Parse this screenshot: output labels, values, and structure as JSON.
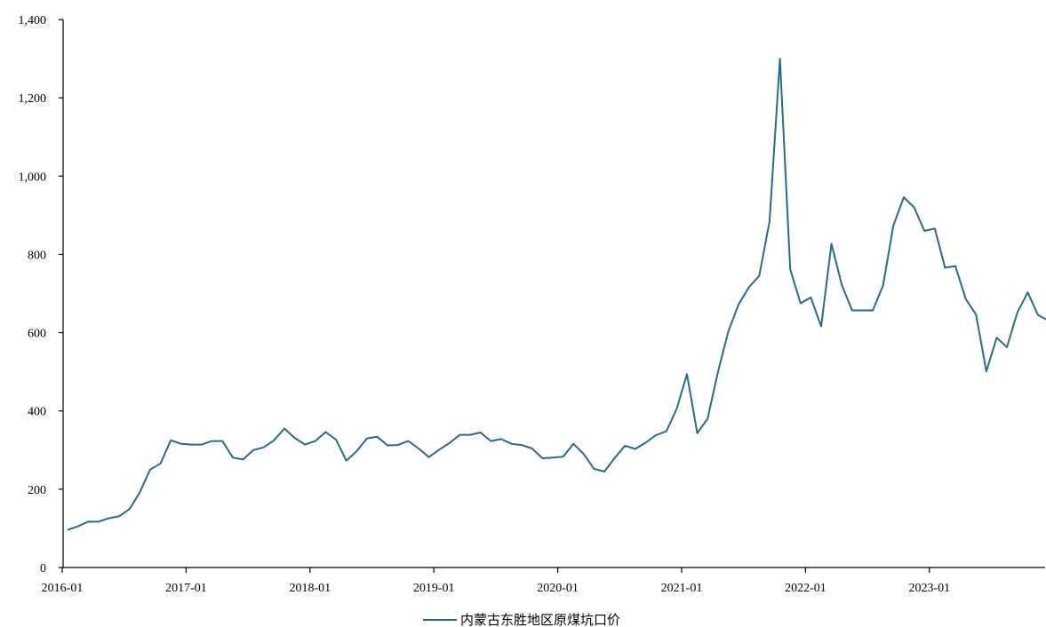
{
  "chart_data": {
    "type": "line",
    "title": "",
    "xlabel": "",
    "ylabel": "",
    "ylim": [
      0,
      1400
    ],
    "yticks": [
      0,
      200,
      400,
      600,
      800,
      1000,
      1200,
      1400
    ],
    "ytick_labels": [
      "0",
      "200",
      "400",
      "600",
      "800",
      "1,000",
      "1,200",
      "1,400"
    ],
    "xticks": [
      "2016-01",
      "2017-01",
      "2018-01",
      "2019-01",
      "2020-01",
      "2021-01",
      "2022-01",
      "2023-01"
    ],
    "xlim": [
      "2016-01",
      "2023-12"
    ],
    "grid": false,
    "legend_position": "bottom-center",
    "series": [
      {
        "name": "内蒙古东胜地区原煤坑口价",
        "color": "#2b6a85",
        "x": [
          "2016-01",
          "2016-02",
          "2016-03",
          "2016-04",
          "2016-05",
          "2016-06",
          "2016-07",
          "2016-08",
          "2016-09",
          "2016-10",
          "2016-11",
          "2016-12",
          "2017-01",
          "2017-02",
          "2017-03",
          "2017-04",
          "2017-05",
          "2017-06",
          "2017-07",
          "2017-08",
          "2017-09",
          "2017-10",
          "2017-11",
          "2017-12",
          "2018-01",
          "2018-02",
          "2018-03",
          "2018-04",
          "2018-05",
          "2018-06",
          "2018-07",
          "2018-08",
          "2018-09",
          "2018-10",
          "2018-11",
          "2018-12",
          "2019-01",
          "2019-02",
          "2019-03",
          "2019-04",
          "2019-05",
          "2019-06",
          "2019-07",
          "2019-08",
          "2019-09",
          "2019-10",
          "2019-11",
          "2019-12",
          "2020-01",
          "2020-02",
          "2020-03",
          "2020-04",
          "2020-05",
          "2020-06",
          "2020-07",
          "2020-08",
          "2020-09",
          "2020-10",
          "2020-11",
          "2020-12",
          "2021-01",
          "2021-02",
          "2021-03",
          "2021-04",
          "2021-05",
          "2021-06",
          "2021-07",
          "2021-08",
          "2021-09",
          "2021-10",
          "2021-11",
          "2021-12",
          "2022-01",
          "2022-02",
          "2022-03",
          "2022-04",
          "2022-05",
          "2022-06",
          "2022-07",
          "2022-08",
          "2022-09",
          "2022-10",
          "2022-11",
          "2022-12",
          "2023-01",
          "2023-02",
          "2023-03",
          "2023-04",
          "2023-05",
          "2023-06",
          "2023-07",
          "2023-08",
          "2023-09",
          "2023-10",
          "2023-11",
          "2023-12"
        ],
        "values": [
          96,
          105,
          117,
          117,
          126,
          131,
          149,
          192,
          250,
          266,
          325,
          316,
          314,
          314,
          323,
          323,
          281,
          276,
          300,
          307,
          325,
          355,
          331,
          314,
          323,
          346,
          327,
          273,
          297,
          330,
          334,
          312,
          313,
          323,
          304,
          282,
          301,
          318,
          339,
          339,
          345,
          323,
          328,
          316,
          313,
          304,
          279,
          281,
          283,
          316,
          290,
          252,
          245,
          280,
          311,
          303,
          319,
          338,
          348,
          405,
          494,
          343,
          380,
          500,
          603,
          672,
          716,
          745,
          884,
          1300,
          762,
          675,
          690,
          616,
          827,
          721,
          657,
          657,
          657,
          721,
          874,
          946,
          920,
          860,
          866,
          766,
          770,
          686,
          646,
          501,
          587,
          563,
          651,
          703,
          645,
          631
        ]
      }
    ]
  }
}
